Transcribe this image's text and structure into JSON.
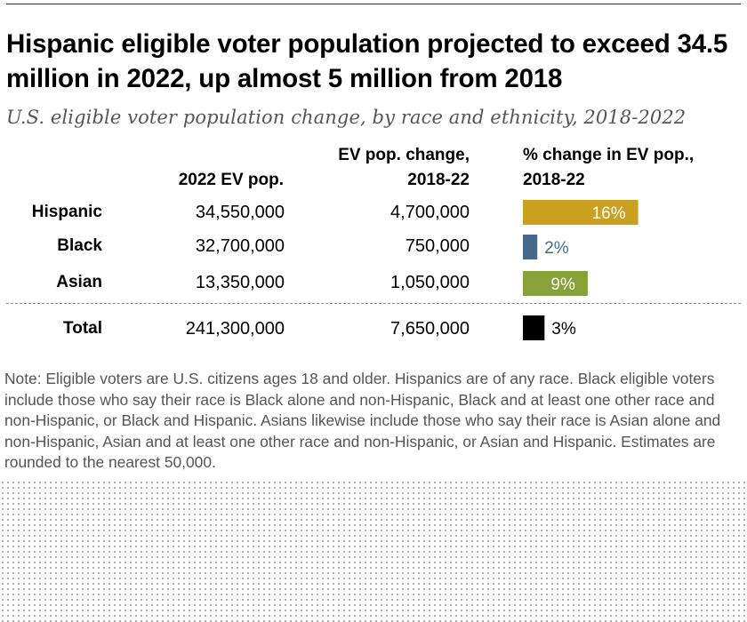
{
  "chart_data": {
    "type": "bar",
    "title": "Hispanic eligible voter population projected to exceed 34.5 million in 2022, up almost 5 million from 2018",
    "subtitle": "U.S. eligible voter population change, by race and ethnicity, 2018-2022",
    "columns": {
      "ev_pop": "2022 EV pop.",
      "ev_change_line1": "EV pop. change,",
      "ev_change_line2": "2018-22",
      "pct_change_line1": "% change in EV pop.,",
      "pct_change_line2": "2018-22"
    },
    "categories": [
      "Hispanic",
      "Black",
      "Asian",
      "Total"
    ],
    "ev_pop_labels": [
      "34,550,000",
      "32,700,000",
      "13,350,000",
      "241,300,000"
    ],
    "ev_change_labels": [
      "4,700,000",
      "750,000",
      "1,050,000",
      "7,650,000"
    ],
    "values": [
      16,
      2,
      9,
      3
    ],
    "value_labels": [
      "16%",
      "2%",
      "9%",
      "3%"
    ],
    "colors": [
      "#c9a01f",
      "#456989",
      "#87a23a",
      "#000000"
    ],
    "label_colors": [
      "#ffffff",
      "#456989",
      "#ffffff",
      "#000000"
    ],
    "note": "Note: Eligible voters are U.S. citizens ages 18 and older. Hispanics are of any race. Black eligible voters include those who say their race is Black alone and non-Hispanic, Black and at least one other race and non-Hispanic, or Black and Hispanic. Asians likewise include those who say their race is Asian alone and non-Hispanic, Asian and at least one other race and non-Hispanic, or Asian and Hispanic. Estimates are rounded to the nearest 50,000."
  }
}
